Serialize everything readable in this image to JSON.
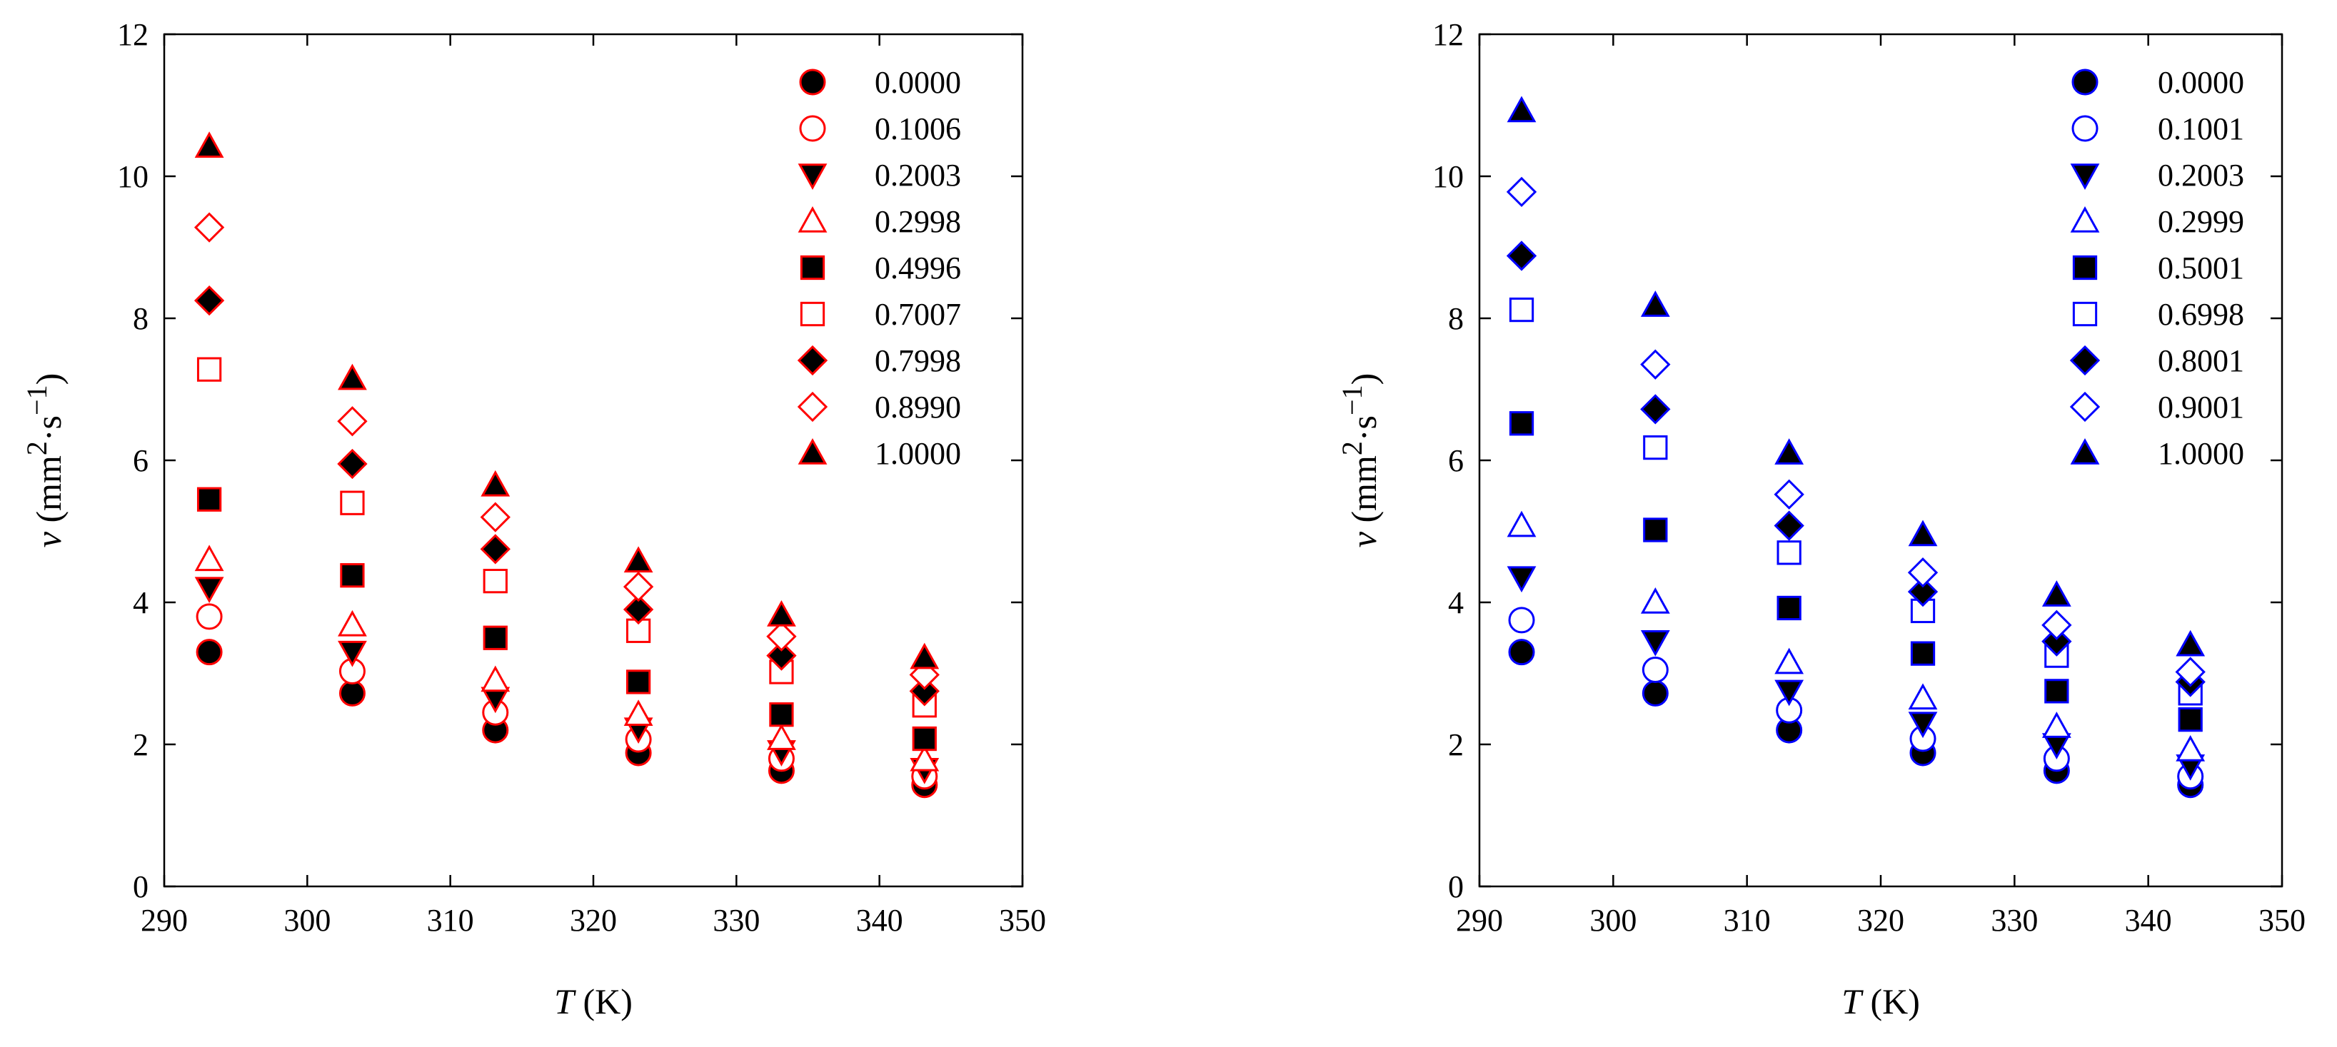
{
  "chart_data": [
    {
      "type": "scatter",
      "panel": "left",
      "color": "#ff0000",
      "xlabel": {
        "symbol": "T",
        "unit": " (K)"
      },
      "ylabel": {
        "symbol": "v",
        "unit_prefix": " (mm",
        "exp1": "2",
        "middle": "·s",
        "exp2": "−1",
        "unit_suffix": ")"
      },
      "xlim": [
        290,
        350
      ],
      "ylim": [
        0,
        12
      ],
      "xticks": [
        "290",
        "300",
        "310",
        "320",
        "330",
        "340",
        "350"
      ],
      "yticks": [
        "0",
        "2",
        "4",
        "6",
        "8",
        "10",
        "12"
      ],
      "legend_position": "top-right",
      "x": [
        293.15,
        303.15,
        313.15,
        323.15,
        333.15,
        343.15
      ],
      "series": [
        {
          "name": "0.0000",
          "marker": "circle-filled",
          "values": [
            3.3,
            2.72,
            2.2,
            1.88,
            1.63,
            1.43
          ]
        },
        {
          "name": "0.1006",
          "marker": "circle-open",
          "values": [
            3.8,
            3.03,
            2.45,
            2.07,
            1.8,
            1.55
          ]
        },
        {
          "name": "0.2003",
          "marker": "triangle-down-filled",
          "values": [
            4.2,
            3.3,
            2.65,
            2.22,
            1.9,
            1.65
          ]
        },
        {
          "name": "0.2998",
          "marker": "triangle-up-open",
          "values": [
            4.6,
            3.68,
            2.9,
            2.42,
            2.08,
            1.78
          ]
        },
        {
          "name": "0.4996",
          "marker": "square-filled",
          "values": [
            5.45,
            4.38,
            3.5,
            2.88,
            2.42,
            2.08
          ]
        },
        {
          "name": "0.7007",
          "marker": "square-open",
          "values": [
            7.28,
            5.4,
            4.3,
            3.6,
            3.02,
            2.55
          ]
        },
        {
          "name": "0.7998",
          "marker": "diamond-filled",
          "values": [
            8.25,
            5.95,
            4.75,
            3.9,
            3.25,
            2.75
          ]
        },
        {
          "name": "0.8990",
          "marker": "diamond-open",
          "values": [
            9.28,
            6.55,
            5.2,
            4.22,
            3.52,
            2.98
          ]
        },
        {
          "name": "1.0000",
          "marker": "triangle-up-filled",
          "values": [
            10.42,
            7.15,
            5.65,
            4.58,
            3.82,
            3.22
          ]
        }
      ]
    },
    {
      "type": "scatter",
      "panel": "right",
      "color": "#0000ff",
      "xlabel": {
        "symbol": "T",
        "unit": " (K)"
      },
      "ylabel": {
        "symbol": "v",
        "unit_prefix": " (mm",
        "exp1": "2",
        "middle": "·s",
        "exp2": "−1",
        "unit_suffix": ")"
      },
      "xlim": [
        290,
        350
      ],
      "ylim": [
        0,
        12
      ],
      "xticks": [
        "290",
        "300",
        "310",
        "320",
        "330",
        "340",
        "350"
      ],
      "yticks": [
        "0",
        "2",
        "4",
        "6",
        "8",
        "10",
        "12"
      ],
      "legend_position": "top-right",
      "x": [
        293.15,
        303.15,
        313.15,
        323.15,
        333.15,
        343.15
      ],
      "series": [
        {
          "name": "0.0000",
          "marker": "circle-filled",
          "values": [
            3.3,
            2.72,
            2.2,
            1.88,
            1.63,
            1.43
          ]
        },
        {
          "name": "0.1001",
          "marker": "circle-open",
          "values": [
            3.75,
            3.05,
            2.48,
            2.08,
            1.8,
            1.55
          ]
        },
        {
          "name": "0.2003",
          "marker": "triangle-down-filled",
          "values": [
            4.35,
            3.45,
            2.75,
            2.3,
            2.0,
            1.7
          ]
        },
        {
          "name": "0.2999",
          "marker": "triangle-up-open",
          "values": [
            5.08,
            4.0,
            3.15,
            2.65,
            2.25,
            1.92
          ]
        },
        {
          "name": "0.5001",
          "marker": "square-filled",
          "values": [
            6.52,
            5.02,
            3.92,
            3.28,
            2.75,
            2.35
          ]
        },
        {
          "name": "0.6998",
          "marker": "square-open",
          "values": [
            8.12,
            6.18,
            4.7,
            3.88,
            3.25,
            2.72
          ]
        },
        {
          "name": "0.8001",
          "marker": "diamond-filled",
          "values": [
            8.88,
            6.72,
            5.08,
            4.15,
            3.45,
            2.88
          ]
        },
        {
          "name": "0.9001",
          "marker": "diamond-open",
          "values": [
            9.78,
            7.35,
            5.52,
            4.42,
            3.68,
            3.02
          ]
        },
        {
          "name": "1.0000",
          "marker": "triangle-up-filled",
          "values": [
            10.92,
            8.18,
            6.1,
            4.95,
            4.1,
            3.4
          ]
        }
      ]
    }
  ]
}
